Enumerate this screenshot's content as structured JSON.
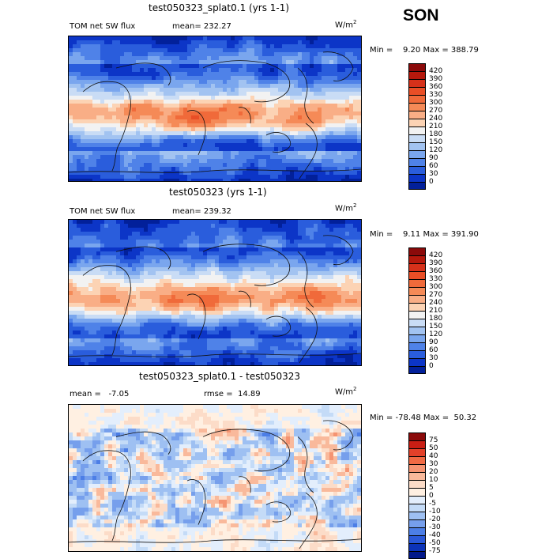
{
  "season": "SON",
  "panels": [
    {
      "title": "test050323_splat0.1 (yrs 1-1)",
      "left_label": "TOM net SW flux",
      "stat_label": "mean= 232.27",
      "units": "W/m",
      "units_exp": "2",
      "minmax": "Min =    9.20 Max = 388.79",
      "kind": "abs",
      "levels": [
        "420",
        "390",
        "360",
        "330",
        "300",
        "270",
        "240",
        "210",
        "180",
        "150",
        "120",
        "90",
        "60",
        "30",
        "0"
      ],
      "colors": [
        "#8b0a0a",
        "#b5180c",
        "#d6311a",
        "#e94e26",
        "#f06a3a",
        "#f58a57",
        "#f9ae86",
        "#fcd3b4",
        "#f2f2f2",
        "#c9dcf5",
        "#a2c3f1",
        "#7aa6ee",
        "#4f82e8",
        "#2a5ddc",
        "#0c35c7",
        "#02209a"
      ]
    },
    {
      "title": "test050323 (yrs 1-1)",
      "left_label": "TOM net SW flux",
      "stat_label": "mean= 239.32",
      "units": "W/m",
      "units_exp": "2",
      "minmax": "Min =    9.11 Max = 391.90",
      "kind": "abs",
      "levels": [
        "420",
        "390",
        "360",
        "330",
        "300",
        "270",
        "240",
        "210",
        "180",
        "150",
        "120",
        "90",
        "60",
        "30",
        "0"
      ],
      "colors": [
        "#8b0a0a",
        "#b5180c",
        "#d6311a",
        "#e94e26",
        "#f06a3a",
        "#f58a57",
        "#f9ae86",
        "#fcd3b4",
        "#f2f2f2",
        "#c9dcf5",
        "#a2c3f1",
        "#7aa6ee",
        "#4f82e8",
        "#2a5ddc",
        "#0c35c7",
        "#02209a"
      ]
    },
    {
      "title": "test050323_splat0.1 - test050323",
      "left_label": "mean =   -7.05",
      "stat_label": "rmse =  14.89",
      "units": "W/m",
      "units_exp": "2",
      "minmax": "Min = -78.48 Max =  50.32",
      "kind": "diff",
      "levels": [
        "75",
        "50",
        "40",
        "30",
        "20",
        "10",
        "5",
        "0",
        "-5",
        "-10",
        "-20",
        "-30",
        "-40",
        "-50",
        "-75"
      ],
      "colors": [
        "#8b0a0a",
        "#c81e14",
        "#e3412a",
        "#f06a44",
        "#f59472",
        "#f9b99b",
        "#fcdcc8",
        "#fff0e2",
        "#e3eefc",
        "#c4dbf7",
        "#9ec0f2",
        "#769fec",
        "#4c7ee6",
        "#2a58d8",
        "#0c33b8",
        "#02188a"
      ]
    }
  ]
}
